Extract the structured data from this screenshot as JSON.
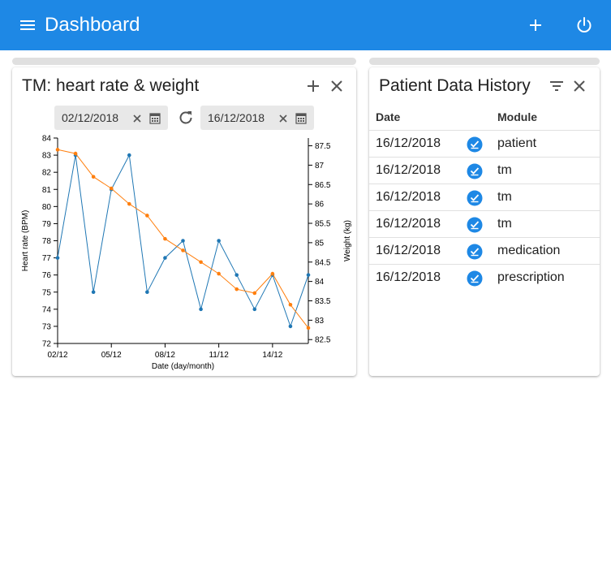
{
  "header": {
    "title": "Dashboard"
  },
  "tm_card": {
    "title": "TM: heart rate & weight",
    "start_date": "02/12/2018",
    "end_date": "16/12/2018"
  },
  "history_card": {
    "title": "Patient Data History",
    "columns": [
      "Date",
      "Module"
    ],
    "rows": [
      {
        "date": "16/12/2018",
        "module": "patient"
      },
      {
        "date": "16/12/2018",
        "module": "tm"
      },
      {
        "date": "16/12/2018",
        "module": "tm"
      },
      {
        "date": "16/12/2018",
        "module": "tm"
      },
      {
        "date": "16/12/2018",
        "module": "medication"
      },
      {
        "date": "16/12/2018",
        "module": "prescription"
      }
    ]
  },
  "colors": {
    "primary": "#1e88e5",
    "heart_rate": "#1f77b4",
    "weight": "#ff7f0e"
  },
  "chart_data": {
    "type": "line",
    "xlabel": "Date (day/month)",
    "ylabel": "Heart rate (BPM)",
    "y2label": "Weight (kg)",
    "x_ticks": [
      "02/12",
      "05/12",
      "08/12",
      "11/12",
      "14/12"
    ],
    "x": [
      "02/12",
      "03/12",
      "04/12",
      "05/12",
      "06/12",
      "07/12",
      "08/12",
      "09/12",
      "10/12",
      "11/12",
      "12/12",
      "13/12",
      "14/12",
      "15/12",
      "16/12"
    ],
    "ylim": [
      72,
      84
    ],
    "y2lim": [
      82.4,
      87.7
    ],
    "y_ticks": [
      72,
      73,
      74,
      75,
      76,
      77,
      78,
      79,
      80,
      81,
      82,
      83,
      84
    ],
    "y2_ticks": [
      "82.5",
      "83",
      "83.5",
      "84",
      "84.5",
      "85",
      "85.5",
      "86",
      "86.5",
      "87",
      "87.5"
    ],
    "series": [
      {
        "axis": "left",
        "values": [
          77,
          83,
          75,
          81,
          83,
          75,
          77,
          78,
          74,
          78,
          76,
          74,
          76,
          73,
          76
        ]
      },
      {
        "axis": "right",
        "values": [
          87.4,
          87.3,
          86.7,
          86.4,
          86.0,
          85.7,
          85.1,
          84.8,
          84.5,
          84.2,
          83.8,
          83.7,
          84.2,
          83.4,
          82.8
        ]
      }
    ]
  }
}
